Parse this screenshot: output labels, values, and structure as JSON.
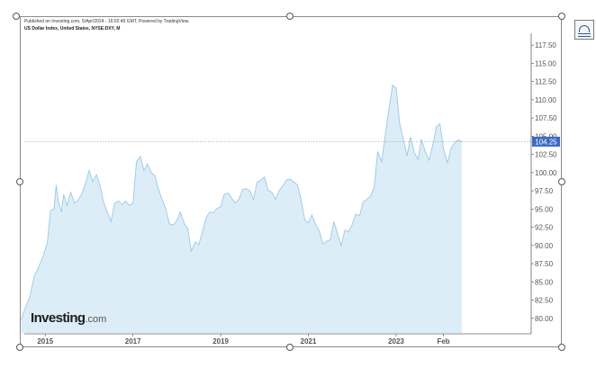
{
  "header": {
    "published_line": "Published on Investing.com, 5/Apr/2024 - 16:02:49 GMT, Powered by TradingView.",
    "symbol_line": "US Dollar Index, United States, NYSE:DXY, M"
  },
  "branding": {
    "logo_main": "Investing",
    "logo_suffix": ".com"
  },
  "colors": {
    "area_fill": "#dcedf8",
    "line": "#9cc8e6",
    "last_price_bg": "#3d6bc4",
    "last_price_text": "#ffffff",
    "axis_text": "#555555"
  },
  "chart_data": {
    "type": "area",
    "title": "",
    "xlabel": "",
    "ylabel": "",
    "x_tick_labels": [
      "2015",
      "2017",
      "2019",
      "2021",
      "2023",
      "Feb"
    ],
    "x_ticks": [
      2015.0,
      2017.0,
      2019.0,
      2021.0,
      2023.0,
      2024.08
    ],
    "xlim": [
      2014.42,
      2026.08
    ],
    "y_tick_labels": [
      "80.00",
      "82.50",
      "85.00",
      "87.50",
      "90.00",
      "92.50",
      "95.00",
      "97.50",
      "100.00",
      "102.50",
      "105.00",
      "107.50",
      "110.00",
      "112.50",
      "115.00",
      "117.50"
    ],
    "ylim": [
      78.0,
      119.0
    ],
    "y_axis_side": "right",
    "last_value_label": "104.25",
    "last_value": 104.25,
    "grid": false,
    "series": [
      {
        "values": [
          [
            2014.45,
            79.8
          ],
          [
            2014.55,
            81.5
          ],
          [
            2014.65,
            83.0
          ],
          [
            2014.75,
            85.8
          ],
          [
            2014.85,
            87.0
          ],
          [
            2014.95,
            88.5
          ],
          [
            2015.05,
            90.5
          ],
          [
            2015.12,
            94.8
          ],
          [
            2015.2,
            95.0
          ],
          [
            2015.25,
            98.3
          ],
          [
            2015.3,
            96.0
          ],
          [
            2015.37,
            94.6
          ],
          [
            2015.42,
            97.0
          ],
          [
            2015.5,
            95.5
          ],
          [
            2015.58,
            97.3
          ],
          [
            2015.67,
            95.8
          ],
          [
            2015.75,
            96.2
          ],
          [
            2015.85,
            97.3
          ],
          [
            2015.92,
            98.6
          ],
          [
            2016.0,
            100.3
          ],
          [
            2016.08,
            98.8
          ],
          [
            2016.17,
            99.7
          ],
          [
            2016.25,
            98.2
          ],
          [
            2016.33,
            96.0
          ],
          [
            2016.42,
            94.5
          ],
          [
            2016.5,
            93.3
          ],
          [
            2016.58,
            95.8
          ],
          [
            2016.67,
            96.1
          ],
          [
            2016.75,
            95.6
          ],
          [
            2016.83,
            96.1
          ],
          [
            2016.92,
            95.5
          ],
          [
            2017.0,
            95.8
          ],
          [
            2017.08,
            101.5
          ],
          [
            2017.17,
            102.2
          ],
          [
            2017.25,
            100.3
          ],
          [
            2017.33,
            101.2
          ],
          [
            2017.42,
            100.0
          ],
          [
            2017.5,
            99.6
          ],
          [
            2017.58,
            97.8
          ],
          [
            2017.67,
            96.2
          ],
          [
            2017.75,
            95.0
          ],
          [
            2017.83,
            93.0
          ],
          [
            2017.92,
            92.8
          ],
          [
            2018.0,
            93.4
          ],
          [
            2018.08,
            94.6
          ],
          [
            2018.17,
            93.0
          ],
          [
            2018.25,
            92.3
          ],
          [
            2018.33,
            89.2
          ],
          [
            2018.42,
            90.5
          ],
          [
            2018.5,
            90.1
          ],
          [
            2018.58,
            91.8
          ],
          [
            2018.67,
            93.8
          ],
          [
            2018.75,
            94.6
          ],
          [
            2018.83,
            94.5
          ],
          [
            2018.92,
            95.1
          ],
          [
            2019.0,
            95.3
          ],
          [
            2019.08,
            97.0
          ],
          [
            2019.17,
            97.2
          ],
          [
            2019.25,
            96.5
          ],
          [
            2019.33,
            95.8
          ],
          [
            2019.42,
            96.4
          ],
          [
            2019.5,
            97.7
          ],
          [
            2019.58,
            97.8
          ],
          [
            2019.67,
            97.5
          ],
          [
            2019.75,
            96.3
          ],
          [
            2019.83,
            98.7
          ],
          [
            2019.92,
            99.0
          ],
          [
            2020.0,
            99.4
          ],
          [
            2020.08,
            97.6
          ],
          [
            2020.17,
            97.3
          ],
          [
            2020.25,
            96.3
          ],
          [
            2020.33,
            97.5
          ],
          [
            2020.42,
            98.2
          ],
          [
            2020.5,
            99.0
          ],
          [
            2020.58,
            99.1
          ],
          [
            2020.67,
            98.7
          ],
          [
            2020.75,
            98.3
          ],
          [
            2020.83,
            96.4
          ],
          [
            2020.92,
            93.5
          ],
          [
            2021.0,
            93.1
          ],
          [
            2021.08,
            94.2
          ],
          [
            2021.17,
            92.8
          ],
          [
            2021.25,
            92.0
          ],
          [
            2021.33,
            90.2
          ],
          [
            2021.42,
            90.6
          ],
          [
            2021.5,
            90.8
          ],
          [
            2021.58,
            93.3
          ],
          [
            2021.67,
            91.5
          ],
          [
            2021.75,
            90.0
          ],
          [
            2021.83,
            92.1
          ],
          [
            2021.92,
            91.9
          ],
          [
            2022.0,
            92.9
          ],
          [
            2022.08,
            94.3
          ],
          [
            2022.17,
            94.1
          ],
          [
            2022.25,
            96.0
          ],
          [
            2022.33,
            96.3
          ],
          [
            2022.42,
            96.8
          ],
          [
            2022.5,
            98.0
          ],
          [
            2022.58,
            102.9
          ],
          [
            2022.67,
            101.5
          ],
          [
            2022.75,
            105.0
          ],
          [
            2022.83,
            108.5
          ],
          [
            2022.92,
            112.0
          ],
          [
            2023.0,
            111.6
          ],
          [
            2023.08,
            106.8
          ],
          [
            2023.17,
            104.5
          ],
          [
            2023.25,
            102.3
          ],
          [
            2023.33,
            104.9
          ],
          [
            2023.42,
            102.7
          ],
          [
            2023.5,
            101.8
          ],
          [
            2023.58,
            104.6
          ],
          [
            2023.67,
            102.8
          ],
          [
            2023.75,
            101.7
          ],
          [
            2023.83,
            103.6
          ],
          [
            2023.92,
            106.3
          ],
          [
            2024.0,
            106.7
          ],
          [
            2024.08,
            103.3
          ],
          [
            2024.17,
            101.3
          ],
          [
            2024.25,
            103.3
          ],
          [
            2024.33,
            104.1
          ],
          [
            2024.42,
            104.5
          ],
          [
            2024.5,
            104.25
          ]
        ]
      }
    ]
  }
}
